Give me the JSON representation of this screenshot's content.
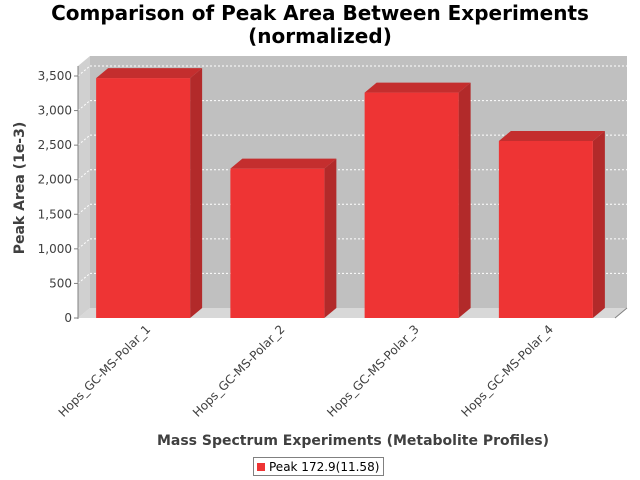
{
  "chart_data": {
    "type": "bar",
    "title_line1": "Comparison of Peak Area Between Experiments",
    "title_line2": "(normalized)",
    "xlabel": "Mass Spectrum Experiments (Metabolite Profiles)",
    "ylabel": "Peak Area (1e-3)",
    "categories": [
      "Hops_GC-MS-Polar_1",
      "Hops_GC-MS-Polar_2",
      "Hops_GC-MS-Polar_3",
      "Hops_GC-MS-Polar_4"
    ],
    "series": [
      {
        "name": "Peak 172.9(11.58)",
        "values": [
          3470,
          2160,
          3260,
          2560
        ],
        "color": "#ee3434"
      }
    ],
    "ylim": [
      0,
      3500
    ],
    "yticks": [
      0,
      500,
      1000,
      1500,
      2000,
      2500,
      3000,
      3500
    ],
    "ytick_labels": [
      "0",
      "500",
      "1,000",
      "1,500",
      "2,000",
      "2,500",
      "3,000",
      "3,500"
    ],
    "grid": true,
    "legend_position": "bottom-center",
    "style": "3d",
    "plot_background": "#c0c0c0"
  }
}
